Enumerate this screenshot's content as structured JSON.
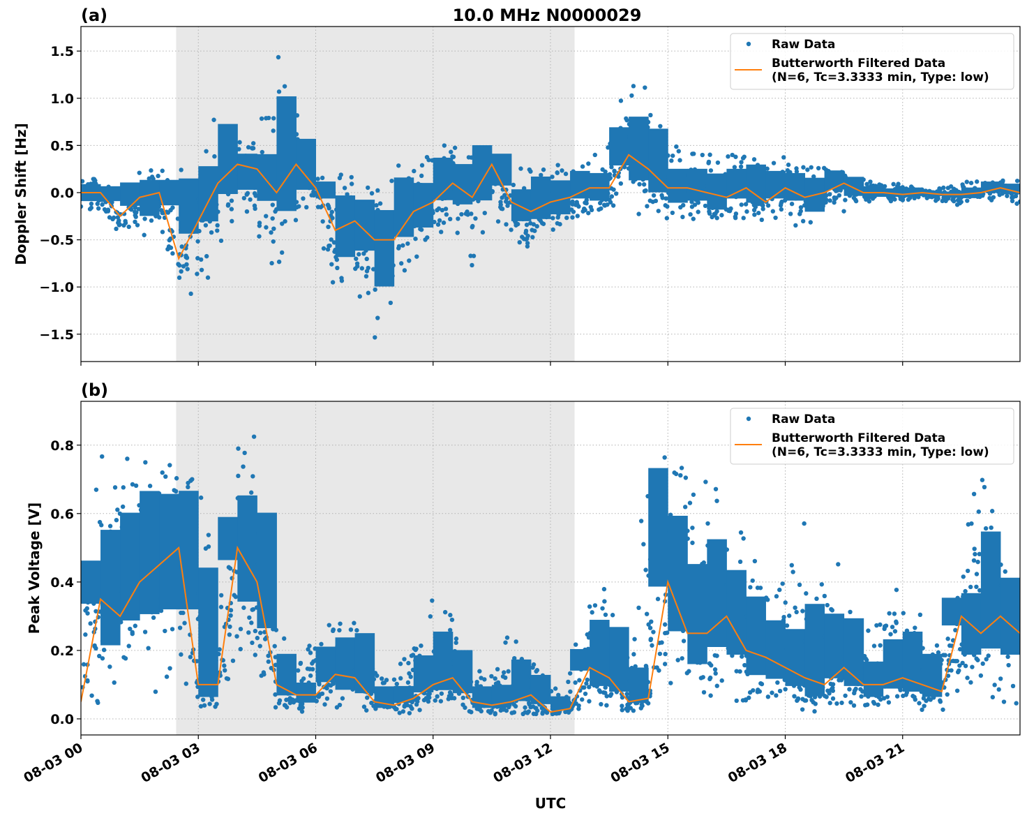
{
  "chart_data": {
    "title": "10.0 MHz N0000029",
    "xlabel": "UTC",
    "date": "08-03",
    "x_tick_labels": [
      "08-03 00",
      "08-03 03",
      "08-03 06",
      "08-03 09",
      "08-03 12",
      "08-03 15",
      "08-03 18",
      "08-03 21"
    ],
    "x_ticks": [
      "00:00",
      "03:00",
      "06:00",
      "09:00",
      "12:00",
      "15:00",
      "18:00",
      "21:00"
    ],
    "xlim": [
      "08-03 00:00",
      "08-04 00:00"
    ],
    "shaded_span": [
      "02:26",
      "12:37"
    ],
    "shade_color": "#e8e8e8",
    "grid": true,
    "legend_placement": "upper right",
    "legend": [
      "Raw Data",
      "Butterworth Filtered Data\n(N=6, Tc=3.3333 min, Type: low)"
    ],
    "legend_lines": [
      "Raw Data",
      "Butterworth Filtered Data",
      "(N=6, Tc=3.3333 min, Type: low)"
    ],
    "raw_color": "#1f77b4",
    "filtered_color": "#ff7f0e",
    "times": [
      "00:00",
      "00:30",
      "01:00",
      "01:30",
      "02:00",
      "02:30",
      "03:00",
      "03:30",
      "04:00",
      "04:30",
      "05:00",
      "05:30",
      "06:00",
      "06:30",
      "07:00",
      "07:30",
      "08:00",
      "08:30",
      "09:00",
      "09:30",
      "10:00",
      "10:30",
      "11:00",
      "11:30",
      "12:00",
      "12:30",
      "13:00",
      "13:30",
      "14:00",
      "14:30",
      "15:00",
      "15:30",
      "16:00",
      "16:30",
      "17:00",
      "17:30",
      "18:00",
      "18:30",
      "19:00",
      "19:30",
      "20:00",
      "20:30",
      "21:00",
      "21:30",
      "22:00",
      "22:30",
      "23:00",
      "23:30",
      "24:00"
    ],
    "panels": [
      {
        "label": "(a)",
        "type": "scatter+line",
        "ylabel": "Doppler Shift [Hz]",
        "ylim": [
          -1.79,
          1.76
        ],
        "y_ticks": [
          -1.5,
          -1.0,
          -0.5,
          0.0,
          0.5,
          1.0,
          1.5
        ],
        "y_tick_labels": [
          "−1.5",
          "−1.0",
          "−0.5",
          "0.0",
          "0.5",
          "1.0",
          "1.5"
        ],
        "filtered": [
          0.0,
          0.0,
          -0.25,
          -0.05,
          0.0,
          -0.7,
          -0.3,
          0.1,
          0.3,
          0.25,
          0.0,
          0.3,
          0.05,
          -0.4,
          -0.3,
          -0.5,
          -0.5,
          -0.2,
          -0.1,
          0.1,
          -0.05,
          0.3,
          -0.1,
          -0.2,
          -0.1,
          -0.05,
          0.05,
          0.05,
          0.4,
          0.25,
          0.05,
          0.05,
          0.0,
          -0.05,
          0.05,
          -0.1,
          0.05,
          -0.05,
          0.0,
          0.1,
          0.0,
          0.0,
          -0.02,
          0.0,
          -0.02,
          -0.02,
          0.0,
          0.05,
          0.0
        ],
        "raw_min": [
          -0.2,
          -0.2,
          -0.45,
          -0.6,
          -0.3,
          -1.0,
          -1.2,
          -0.6,
          -0.3,
          -0.5,
          -1.1,
          -0.3,
          -0.2,
          -1.25,
          -1.0,
          -1.6,
          -1.1,
          -0.8,
          -0.5,
          -0.4,
          -0.9,
          -0.2,
          -0.55,
          -0.6,
          -0.5,
          -0.3,
          -0.25,
          -0.2,
          -0.2,
          -0.3,
          -0.3,
          -0.25,
          -0.4,
          -0.3,
          -0.3,
          -0.35,
          -0.25,
          -0.5,
          -0.15,
          -0.2,
          -0.1,
          -0.1,
          -0.1,
          -0.08,
          -0.1,
          -0.15,
          -0.1,
          -0.1,
          -0.15
        ],
        "raw_max": [
          0.2,
          0.15,
          0.1,
          0.25,
          0.3,
          0.3,
          0.1,
          1.05,
          0.55,
          0.6,
          1.6,
          0.9,
          0.2,
          0.2,
          0.2,
          0.2,
          0.3,
          0.25,
          0.5,
          0.55,
          0.4,
          0.55,
          0.2,
          0.4,
          0.3,
          0.35,
          0.4,
          0.7,
          1.3,
          1.2,
          0.5,
          0.5,
          0.45,
          0.4,
          0.6,
          0.3,
          0.4,
          0.3,
          0.3,
          0.25,
          0.15,
          0.1,
          0.1,
          0.05,
          0.05,
          0.1,
          0.15,
          0.15,
          0.15
        ]
      },
      {
        "label": "(b)",
        "type": "scatter+line",
        "ylabel": "Peak Voltage [V]",
        "ylim": [
          -0.047,
          0.928
        ],
        "y_ticks": [
          0.0,
          0.2,
          0.4,
          0.6,
          0.8
        ],
        "y_tick_labels": [
          "0.0",
          "0.2",
          "0.4",
          "0.6",
          "0.8"
        ],
        "filtered": [
          0.05,
          0.35,
          0.3,
          0.4,
          0.45,
          0.5,
          0.1,
          0.1,
          0.5,
          0.4,
          0.1,
          0.07,
          0.07,
          0.13,
          0.12,
          0.05,
          0.04,
          0.06,
          0.1,
          0.12,
          0.05,
          0.04,
          0.05,
          0.07,
          0.02,
          0.03,
          0.15,
          0.12,
          0.05,
          0.06,
          0.4,
          0.25,
          0.25,
          0.3,
          0.2,
          0.18,
          0.15,
          0.12,
          0.1,
          0.15,
          0.1,
          0.1,
          0.12,
          0.1,
          0.08,
          0.3,
          0.25,
          0.3,
          0.25
        ],
        "raw_min": [
          0.02,
          0.05,
          0.05,
          0.08,
          0.05,
          0.1,
          0.02,
          0.02,
          0.15,
          0.1,
          0.03,
          0.02,
          0.02,
          0.03,
          0.02,
          0.01,
          0.01,
          0.01,
          0.02,
          0.02,
          0.01,
          0.01,
          0.01,
          0.01,
          0.01,
          0.01,
          0.03,
          0.03,
          0.02,
          0.03,
          0.08,
          0.05,
          0.05,
          0.05,
          0.04,
          0.04,
          0.03,
          0.0,
          0.03,
          0.03,
          0.02,
          0.03,
          0.03,
          0.02,
          0.02,
          0.05,
          0.04,
          0.05,
          0.02
        ],
        "raw_max": [
          0.3,
          0.8,
          0.75,
          0.88,
          0.8,
          0.87,
          0.86,
          0.3,
          0.84,
          0.85,
          0.3,
          0.15,
          0.25,
          0.37,
          0.41,
          0.15,
          0.12,
          0.25,
          0.4,
          0.3,
          0.15,
          0.15,
          0.28,
          0.2,
          0.1,
          0.15,
          0.46,
          0.45,
          0.25,
          0.8,
          0.83,
          0.7,
          0.75,
          0.6,
          0.55,
          0.42,
          0.4,
          0.6,
          0.45,
          0.47,
          0.25,
          0.35,
          0.42,
          0.3,
          0.2,
          0.45,
          0.8,
          0.55,
          0.45
        ]
      }
    ]
  }
}
